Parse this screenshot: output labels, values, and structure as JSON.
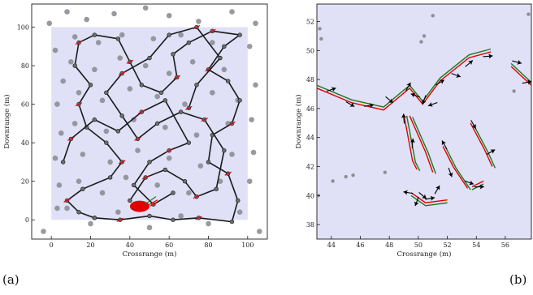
{
  "panel_labels": [
    "(a)",
    "(b)"
  ],
  "colors": {
    "region": "#e0e0f7",
    "scatter": "#8e8e96",
    "track": "#1a1a1a",
    "track_node": "#6e6e6e",
    "estimate": "#e00000",
    "truth": "#1a7a1a",
    "arrow": "#000000"
  },
  "chart_data": [
    {
      "type": "scatter",
      "panel": "(a)",
      "xlabel": "Crossrange (m)",
      "ylabel": "Downrange (m)",
      "xlim": [
        -10,
        110
      ],
      "ylim": [
        -10,
        112
      ],
      "xticks": [
        0,
        20,
        40,
        60,
        80,
        100
      ],
      "yticks": [
        0,
        20,
        40,
        60,
        80,
        100
      ],
      "grid": false,
      "search_region": {
        "x": [
          0,
          100
        ],
        "y": [
          0,
          100
        ]
      },
      "series": [
        {
          "role": "background-points",
          "points": [
            [
              -1,
              102
            ],
            [
              8,
              108
            ],
            [
              18,
              104
            ],
            [
              32,
              107
            ],
            [
              48,
              110
            ],
            [
              60,
              106
            ],
            [
              75,
              103
            ],
            [
              92,
              108
            ],
            [
              104,
              102
            ],
            [
              2,
              88
            ],
            [
              6,
              72
            ],
            [
              3,
              60
            ],
            [
              5,
              45
            ],
            [
              2,
              32
            ],
            [
              4,
              18
            ],
            [
              3,
              6
            ],
            [
              101,
              90
            ],
            [
              104,
              70
            ],
            [
              102,
              52
            ],
            [
              103,
              35
            ],
            [
              101,
              20
            ],
            [
              12,
              95
            ],
            [
              24,
              92
            ],
            [
              36,
              96
            ],
            [
              52,
              94
            ],
            [
              66,
              96
            ],
            [
              82,
              92
            ],
            [
              10,
              82
            ],
            [
              22,
              78
            ],
            [
              35,
              84
            ],
            [
              48,
              80
            ],
            [
              60,
              76
            ],
            [
              72,
              82
            ],
            [
              88,
              78
            ],
            [
              14,
              66
            ],
            [
              26,
              62
            ],
            [
              40,
              68
            ],
            [
              54,
              64
            ],
            [
              68,
              60
            ],
            [
              82,
              66
            ],
            [
              95,
              62
            ],
            [
              12,
              50
            ],
            [
              28,
              46
            ],
            [
              42,
              52
            ],
            [
              58,
              48
            ],
            [
              74,
              44
            ],
            [
              90,
              50
            ],
            [
              16,
              34
            ],
            [
              30,
              30
            ],
            [
              44,
              36
            ],
            [
              60,
              32
            ],
            [
              76,
              28
            ],
            [
              92,
              34
            ],
            [
              14,
              20
            ],
            [
              26,
              14
            ],
            [
              38,
              22
            ],
            [
              54,
              18
            ],
            [
              70,
              14
            ],
            [
              86,
              20
            ],
            [
              8,
              6
            ],
            [
              20,
              -2
            ],
            [
              34,
              4
            ],
            [
              50,
              -4
            ],
            [
              66,
              2
            ],
            [
              80,
              -2
            ],
            [
              96,
              4
            ],
            [
              -4,
              -6
            ],
            [
              106,
              -6
            ]
          ]
        },
        {
          "role": "track",
          "points": [
            [
              22,
              1
            ],
            [
              35,
              0
            ],
            [
              50,
              2
            ],
            [
              62,
              0
            ],
            [
              75,
              1
            ],
            [
              92,
              -1
            ],
            [
              95,
              10
            ],
            [
              90,
              24
            ],
            [
              80,
              30
            ],
            [
              82,
              44
            ],
            [
              92,
              50
            ],
            [
              96,
              62
            ],
            [
              90,
              72
            ],
            [
              80,
              78
            ],
            [
              88,
              90
            ],
            [
              96,
              96
            ],
            [
              82,
              98
            ],
            [
              70,
              92
            ],
            [
              62,
              86
            ],
            [
              64,
              74
            ],
            [
              56,
              66
            ],
            [
              46,
              70
            ],
            [
              40,
              82
            ],
            [
              34,
              94
            ],
            [
              22,
              96
            ],
            [
              14,
              92
            ],
            [
              12,
              80
            ],
            [
              20,
              70
            ],
            [
              14,
              60
            ],
            [
              18,
              48
            ],
            [
              28,
              40
            ],
            [
              36,
              30
            ],
            [
              30,
              22
            ],
            [
              16,
              16
            ],
            [
              8,
              10
            ],
            [
              14,
              4
            ],
            [
              22,
              1
            ]
          ]
        },
        {
          "role": "track",
          "points": [
            [
              40,
              10
            ],
            [
              48,
              22
            ],
            [
              58,
              26
            ],
            [
              68,
              20
            ],
            [
              74,
              12
            ],
            [
              84,
              16
            ],
            [
              88,
              36
            ],
            [
              78,
              52
            ],
            [
              66,
              56
            ],
            [
              54,
              50
            ],
            [
              44,
              42
            ],
            [
              36,
              54
            ],
            [
              28,
              66
            ],
            [
              36,
              76
            ],
            [
              50,
              84
            ],
            [
              60,
              96
            ],
            [
              74,
              100
            ],
            [
              86,
              84
            ],
            [
              74,
              70
            ],
            [
              70,
              58
            ]
          ]
        },
        {
          "role": "track",
          "points": [
            [
              6,
              30
            ],
            [
              10,
              42
            ],
            [
              22,
              52
            ],
            [
              34,
              46
            ],
            [
              46,
              56
            ],
            [
              58,
              62
            ],
            [
              70,
              40
            ],
            [
              60,
              36
            ],
            [
              50,
              30
            ],
            [
              42,
              18
            ],
            [
              52,
              8
            ],
            [
              62,
              14
            ]
          ]
        }
      ],
      "annotations": [
        {
          "role": "estimate-cluster",
          "x": 45,
          "y": 7
        }
      ]
    },
    {
      "type": "scatter",
      "panel": "(b)",
      "xlabel": "Crossrange (m)",
      "ylabel": "Downrange (m)",
      "xlim": [
        43,
        57.8
      ],
      "ylim": [
        37,
        53.2
      ],
      "xticks": [
        44,
        46,
        48,
        50,
        52,
        54,
        56
      ],
      "yticks": [
        38,
        40,
        42,
        44,
        46,
        48,
        50,
        52
      ],
      "grid": false,
      "points": [
        [
          43.2,
          51.5
        ],
        [
          51.0,
          52.4
        ],
        [
          50.2,
          50.6
        ],
        [
          50.4,
          51.0
        ],
        [
          43.3,
          50.8
        ],
        [
          44.1,
          41.0
        ],
        [
          45.0,
          41.3
        ],
        [
          45.5,
          41.4
        ],
        [
          47.7,
          41.6
        ],
        [
          43.1,
          40.0
        ],
        [
          56.6,
          47.2
        ],
        [
          57.6,
          52.5
        ]
      ],
      "trajectories": [
        {
          "estimate": [
            [
              43.0,
              47.4
            ],
            [
              45.4,
              46.4
            ],
            [
              47.6,
              45.9
            ],
            [
              49.4,
              47.4
            ],
            [
              50.3,
              46.3
            ],
            [
              51.5,
              47.9
            ],
            [
              53.5,
              49.5
            ],
            [
              55.0,
              49.9
            ]
          ],
          "truth": [
            [
              43.0,
              47.6
            ],
            [
              45.4,
              46.6
            ],
            [
              47.6,
              46.1
            ],
            [
              49.4,
              47.6
            ],
            [
              50.3,
              46.5
            ],
            [
              51.5,
              48.1
            ],
            [
              53.5,
              49.7
            ],
            [
              55.0,
              50.1
            ]
          ]
        },
        {
          "estimate": [
            [
              56.4,
              48.9
            ],
            [
              57.8,
              47.6
            ]
          ],
          "truth": [
            [
              56.4,
              49.1
            ],
            [
              57.8,
              47.8
            ]
          ]
        },
        {
          "estimate": [
            [
              49.0,
              45.6
            ],
            [
              49.6,
              42.4
            ],
            [
              49.9,
              41.8
            ]
          ],
          "truth": [
            [
              49.2,
              45.5
            ],
            [
              49.8,
              42.3
            ],
            [
              50.1,
              41.7
            ]
          ]
        },
        {
          "estimate": [
            [
              49.4,
              45.5
            ],
            [
              50.5,
              43.0
            ],
            [
              51.0,
              41.6
            ]
          ],
          "truth": [
            [
              49.6,
              45.4
            ],
            [
              50.7,
              42.9
            ],
            [
              51.2,
              41.5
            ]
          ]
        },
        {
          "estimate": [
            [
              53.6,
              45.0
            ],
            [
              54.6,
              43.1
            ],
            [
              55.1,
              42.0
            ]
          ],
          "truth": [
            [
              53.8,
              44.9
            ],
            [
              54.8,
              43.0
            ],
            [
              55.3,
              41.9
            ]
          ]
        },
        {
          "estimate": [
            [
              51.7,
              43.4
            ],
            [
              52.4,
              42.0
            ],
            [
              53.4,
              40.5
            ]
          ],
          "truth": [
            [
              51.9,
              43.3
            ],
            [
              52.6,
              41.9
            ],
            [
              53.6,
              40.4
            ]
          ]
        },
        {
          "estimate": [
            [
              49.5,
              40.2
            ],
            [
              50.5,
              39.5
            ],
            [
              52.0,
              39.7
            ]
          ],
          "truth": [
            [
              49.5,
              40.0
            ],
            [
              50.5,
              39.3
            ],
            [
              52.0,
              39.5
            ]
          ]
        },
        {
          "estimate": [
            [
              53.7,
              40.6
            ],
            [
              54.5,
              41.0
            ]
          ],
          "truth": [
            [
              53.7,
              40.4
            ],
            [
              54.5,
              40.8
            ]
          ]
        }
      ],
      "arrows": [
        {
          "x": 44.0,
          "y": 47.3,
          "angle": 20
        },
        {
          "x": 45.3,
          "y": 46.3,
          "angle": -30
        },
        {
          "x": 46.6,
          "y": 46.2,
          "angle": 10
        },
        {
          "x": 48.0,
          "y": 46.6,
          "angle": -40
        },
        {
          "x": 49.3,
          "y": 47.5,
          "angle": 60
        },
        {
          "x": 49.8,
          "y": 46.9,
          "angle": 160
        },
        {
          "x": 50.4,
          "y": 46.6,
          "angle": -110
        },
        {
          "x": 51.0,
          "y": 46.3,
          "angle": 200
        },
        {
          "x": 51.5,
          "y": 47.8,
          "angle": 30
        },
        {
          "x": 52.6,
          "y": 48.3,
          "angle": -20
        },
        {
          "x": 53.5,
          "y": 49.1,
          "angle": 40
        },
        {
          "x": 54.8,
          "y": 49.6,
          "angle": 5
        },
        {
          "x": 56.8,
          "y": 49.2,
          "angle": -15
        },
        {
          "x": 57.5,
          "y": 47.8,
          "angle": 10
        },
        {
          "x": 53.8,
          "y": 44.9,
          "angle": -60
        },
        {
          "x": 55.0,
          "y": 43.0,
          "angle": 30
        },
        {
          "x": 49.0,
          "y": 45.3,
          "angle": 95
        },
        {
          "x": 49.6,
          "y": 43.6,
          "angle": 85
        },
        {
          "x": 51.8,
          "y": 43.5,
          "angle": 120
        },
        {
          "x": 52.2,
          "y": 41.6,
          "angle": -70
        },
        {
          "x": 49.3,
          "y": 40.2,
          "angle": 170
        },
        {
          "x": 49.9,
          "y": 39.6,
          "angle": 250
        },
        {
          "x": 50.3,
          "y": 40.0,
          "angle": -40
        },
        {
          "x": 50.8,
          "y": 39.8,
          "angle": 10
        },
        {
          "x": 51.3,
          "y": 40.4,
          "angle": 60
        },
        {
          "x": 53.5,
          "y": 40.9,
          "angle": -20
        },
        {
          "x": 54.2,
          "y": 40.6,
          "angle": 0
        }
      ]
    }
  ]
}
